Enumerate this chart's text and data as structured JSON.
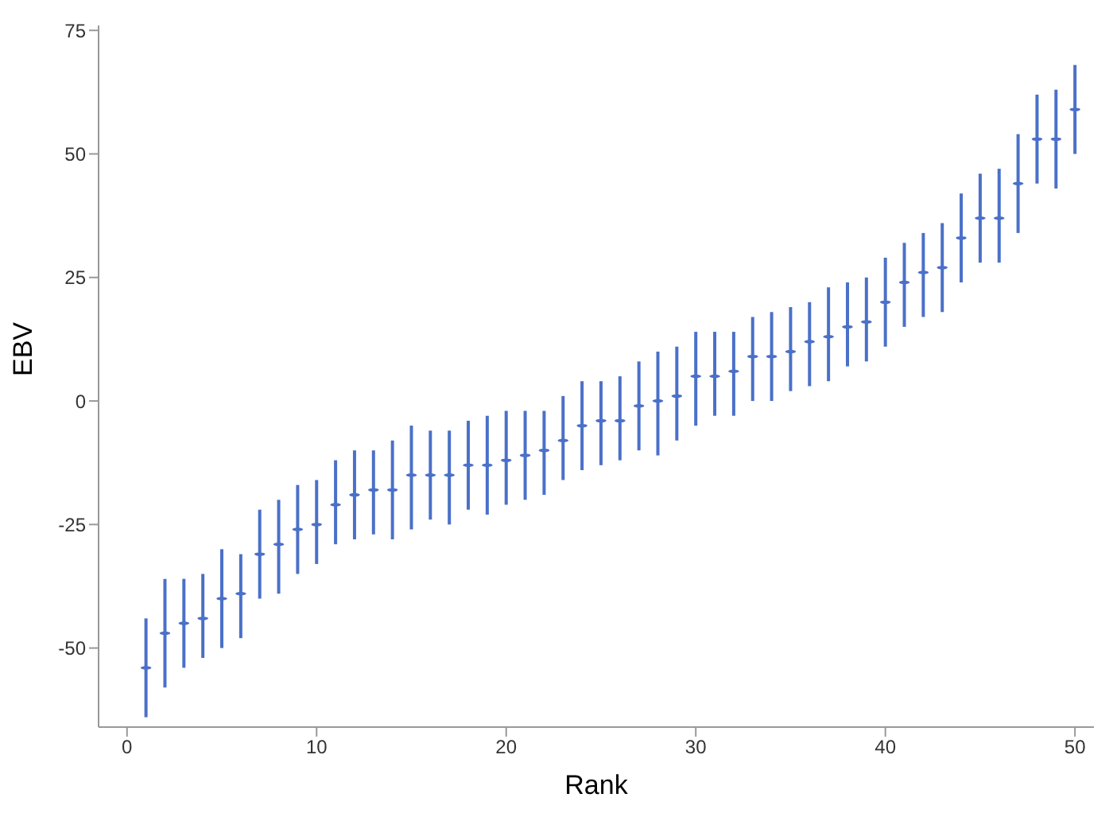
{
  "chart_data": {
    "type": "scatter",
    "xlabel": "Rank",
    "ylabel": "EBV",
    "color": "#4a70c8",
    "x": [
      1,
      2,
      3,
      4,
      5,
      6,
      7,
      8,
      9,
      10,
      11,
      12,
      13,
      14,
      15,
      16,
      17,
      18,
      19,
      20,
      21,
      22,
      23,
      24,
      25,
      26,
      27,
      28,
      29,
      30,
      31,
      32,
      33,
      34,
      35,
      36,
      37,
      38,
      39,
      40,
      41,
      42,
      43,
      44,
      45,
      46,
      47,
      48,
      49,
      50
    ],
    "values": [
      -54,
      -47,
      -45,
      -44,
      -40,
      -39,
      -31,
      -29,
      -26,
      -25,
      -21,
      -19,
      -18,
      -18,
      -15,
      -15,
      -15,
      -13,
      -13,
      -12,
      -11,
      -10,
      -8,
      -5,
      -4,
      -4,
      -1,
      0,
      1,
      5,
      5,
      6,
      9,
      9,
      10,
      12,
      13,
      15,
      16,
      20,
      24,
      26,
      27,
      33,
      37,
      37,
      44,
      53,
      53,
      59
    ],
    "errors": [
      [
        -64,
        -44
      ],
      [
        -58,
        -36
      ],
      [
        -54,
        -36
      ],
      [
        -52,
        -35
      ],
      [
        -50,
        -30
      ],
      [
        -48,
        -31
      ],
      [
        -40,
        -22
      ],
      [
        -39,
        -20
      ],
      [
        -35,
        -17
      ],
      [
        -33,
        -16
      ],
      [
        -29,
        -12
      ],
      [
        -28,
        -10
      ],
      [
        -27,
        -10
      ],
      [
        -28,
        -8
      ],
      [
        -26,
        -5
      ],
      [
        -24,
        -6
      ],
      [
        -25,
        -6
      ],
      [
        -22,
        -4
      ],
      [
        -23,
        -3
      ],
      [
        -21,
        -2
      ],
      [
        -20,
        -2
      ],
      [
        -19,
        -2
      ],
      [
        -16,
        1
      ],
      [
        -14,
        4
      ],
      [
        -13,
        4
      ],
      [
        -12,
        5
      ],
      [
        -10,
        8
      ],
      [
        -11,
        10
      ],
      [
        -8,
        11
      ],
      [
        -5,
        14
      ],
      [
        -3,
        14
      ],
      [
        -3,
        14
      ],
      [
        0,
        17
      ],
      [
        0,
        18
      ],
      [
        2,
        19
      ],
      [
        3,
        20
      ],
      [
        4,
        23
      ],
      [
        7,
        24
      ],
      [
        8,
        25
      ],
      [
        11,
        29
      ],
      [
        15,
        32
      ],
      [
        17,
        34
      ],
      [
        18,
        36
      ],
      [
        24,
        42
      ],
      [
        28,
        46
      ],
      [
        28,
        47
      ],
      [
        34,
        54
      ],
      [
        44,
        62
      ],
      [
        43,
        63
      ],
      [
        50,
        68
      ]
    ],
    "xlim": [
      -1.5,
      51
    ],
    "ylim": [
      -66,
      76
    ],
    "xticks": [
      0,
      10,
      20,
      30,
      40,
      50
    ],
    "yticks": [
      -50,
      -25,
      0,
      25,
      50,
      75
    ]
  }
}
